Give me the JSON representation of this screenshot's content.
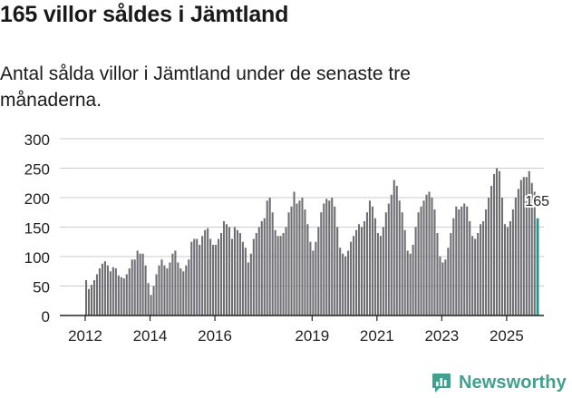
{
  "title": "165 villor såldes i Jämtland",
  "subtitle": "Antal sålda villor i Jämtland under de senaste tre månaderna.",
  "brand": {
    "name": "Newsworthy",
    "icon": "newsworthy-logo-icon"
  },
  "colors": {
    "bar": "#6f6e73",
    "highlight": "#20968a",
    "axis": "#222222",
    "grid": "#cccccc",
    "brand": "#41a08f"
  },
  "chart_data": {
    "type": "bar",
    "title": "165 villor såldes i Jämtland",
    "xlabel": "",
    "ylabel": "",
    "ylim": [
      0,
      300
    ],
    "yticks": [
      0,
      50,
      100,
      150,
      200,
      250,
      300
    ],
    "xtick_labels": [
      "2012",
      "2014",
      "2016",
      "2019",
      "2021",
      "2023",
      "2025"
    ],
    "start_month": "2012-01",
    "value_note": "Monthly bars, rolling three-month totals; last bar highlighted",
    "values": [
      60,
      45,
      52,
      60,
      70,
      80,
      88,
      92,
      85,
      75,
      82,
      80,
      68,
      65,
      63,
      70,
      80,
      95,
      95,
      110,
      105,
      105,
      85,
      55,
      35,
      50,
      70,
      85,
      95,
      85,
      80,
      90,
      105,
      110,
      90,
      80,
      75,
      85,
      95,
      125,
      130,
      130,
      120,
      135,
      145,
      148,
      130,
      120,
      120,
      130,
      140,
      160,
      155,
      150,
      130,
      150,
      145,
      140,
      125,
      115,
      90,
      105,
      130,
      140,
      150,
      160,
      165,
      195,
      200,
      175,
      145,
      135,
      135,
      140,
      150,
      175,
      185,
      210,
      190,
      195,
      200,
      180,
      155,
      125,
      110,
      125,
      150,
      175,
      190,
      198,
      195,
      200,
      185,
      150,
      115,
      105,
      100,
      110,
      125,
      135,
      145,
      155,
      150,
      160,
      175,
      195,
      185,
      165,
      140,
      135,
      150,
      175,
      190,
      205,
      230,
      220,
      195,
      175,
      145,
      110,
      105,
      120,
      150,
      175,
      185,
      195,
      205,
      210,
      200,
      180,
      140,
      100,
      90,
      95,
      115,
      140,
      165,
      185,
      180,
      185,
      190,
      185,
      160,
      135,
      130,
      140,
      155,
      160,
      180,
      200,
      220,
      240,
      250,
      245,
      200,
      155,
      150,
      160,
      180,
      200,
      215,
      230,
      235,
      235,
      245,
      225,
      210,
      165
    ],
    "last_value_label": "165"
  }
}
